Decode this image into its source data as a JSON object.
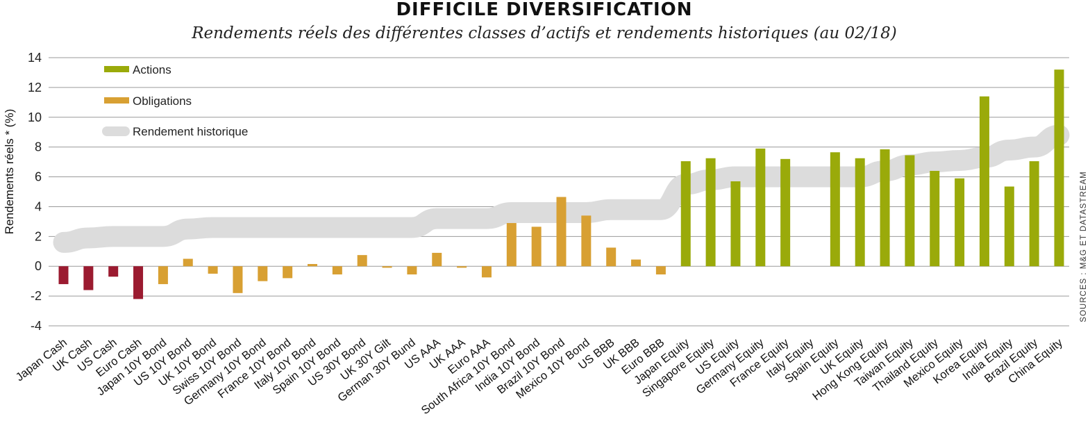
{
  "chart_data": {
    "type": "bar",
    "title": "DIFFICILE DIVERSIFICATION",
    "subtitle": "Rendements réels des différentes classes d’actifs et rendements historiques (au 02/18)",
    "ylabel": "Rendements réels * (%)",
    "source": "SOURCES : M&G ET DATASTREAM",
    "ylim": [
      -4,
      14
    ],
    "yticks": [
      -4,
      -2,
      0,
      2,
      4,
      6,
      8,
      10,
      12,
      14
    ],
    "grid": true,
    "legend_position": "top-left",
    "legend": [
      {
        "label": "Actions",
        "color": "#9aaa0a",
        "kind": "bar"
      },
      {
        "label": "Obligations",
        "color": "#d8a033",
        "kind": "bar"
      },
      {
        "label": "Rendement historique",
        "color": "#dcdcdc",
        "kind": "band"
      }
    ],
    "categories": [
      "Japan Cash",
      "UK Cash",
      "US Cash",
      "Euro Cash",
      "Japan 10Y Bond",
      "US 10Y Bond",
      "UK 10Y Bond",
      "Swiss 10Y Bond",
      "Germany 10Y Bond",
      "France 10Y Bond",
      "Italy 10Y Bond",
      "Spain 10Y Bond",
      "US 30Y Bond",
      "UK 30Y Gilt",
      "German 30Y Bund",
      "US AAA",
      "UK AAA",
      "Euro AAA",
      "South Africa 10Y Bond",
      "India 10Y Bond",
      "Brazil 10Y Bond",
      "Mexico 10Y Bond",
      "US BBB",
      "UK BBB",
      "Euro BBB",
      "Japan Equity",
      "Singapore Equity",
      "US Equity",
      "Germany Equity",
      "France Equity",
      "Italy Equity",
      "Spain Equity",
      "UK Equity",
      "Hong Kong Equity",
      "Taiwan Equity",
      "Thailand Equity",
      "Mexico Equity",
      "Korea Equity",
      "India Equity",
      "Brazil Equity",
      "China Equity"
    ],
    "values": [
      -1.2,
      -1.6,
      -0.7,
      -2.2,
      -1.2,
      0.5,
      -0.5,
      -1.8,
      -1.0,
      -0.8,
      0.15,
      -0.55,
      0.75,
      -0.1,
      -0.55,
      0.9,
      -0.1,
      -0.75,
      2.9,
      2.65,
      4.65,
      3.4,
      1.25,
      0.45,
      -0.55,
      7.05,
      7.25,
      5.7,
      7.9,
      7.2,
      0,
      7.65,
      7.25,
      7.85,
      7.45,
      6.4,
      5.9,
      11.4,
      5.35,
      7.05,
      13.2
    ],
    "groups": [
      "cash",
      "cash",
      "cash",
      "cash",
      "bond",
      "bond",
      "bond",
      "bond",
      "bond",
      "bond",
      "bond",
      "bond",
      "bond",
      "bond",
      "bond",
      "bond",
      "bond",
      "bond",
      "bond",
      "bond",
      "bond",
      "bond",
      "bond",
      "bond",
      "bond",
      "equity",
      "equity",
      "equity",
      "equity",
      "equity",
      "equity",
      "equity",
      "equity",
      "equity",
      "equity",
      "equity",
      "equity",
      "equity",
      "equity",
      "equity",
      "equity"
    ],
    "historical_band": {
      "name": "Rendement historique",
      "x": [
        "Japan Cash",
        "UK Cash",
        "US Cash",
        "Euro Cash",
        "Japan 10Y Bond",
        "US 10Y Bond",
        "UK 10Y Bond",
        "Swiss 10Y Bond",
        "Germany 10Y Bond",
        "France 10Y Bond",
        "Italy 10Y Bond",
        "Spain 10Y Bond",
        "US 30Y Bond",
        "UK 30Y Gilt",
        "German 30Y Bund",
        "US AAA",
        "UK AAA",
        "Euro AAA",
        "South Africa 10Y Bond",
        "India 10Y Bond",
        "Brazil 10Y Bond",
        "Mexico 10Y Bond",
        "US BBB",
        "UK BBB",
        "Euro BBB",
        "Japan Equity",
        "Singapore Equity",
        "US Equity",
        "Germany Equity",
        "France Equity",
        "Italy Equity",
        "Spain Equity",
        "UK Equity",
        "Hong Kong Equity",
        "Taiwan Equity",
        "Thailand Equity",
        "Mexico Equity",
        "Korea Equity",
        "India Equity",
        "Brazil Equity",
        "China Equity"
      ],
      "values": [
        1.6,
        1.9,
        2.0,
        2.0,
        2.0,
        2.5,
        2.6,
        2.6,
        2.6,
        2.6,
        2.6,
        2.6,
        2.6,
        2.6,
        2.6,
        3.2,
        3.2,
        3.2,
        3.6,
        3.6,
        3.6,
        3.6,
        3.8,
        3.8,
        3.8,
        5.5,
        5.8,
        6.0,
        6.0,
        6.0,
        6.0,
        6.0,
        6.0,
        6.4,
        6.8,
        7.0,
        7.1,
        7.3,
        7.8,
        8.0,
        8.8
      ]
    }
  },
  "colors": {
    "cash": "#9b1b30",
    "bond": "#d8a033",
    "equity": "#9aaa0a",
    "band": "#dcdcdc",
    "grid": "#9a9a9a"
  }
}
